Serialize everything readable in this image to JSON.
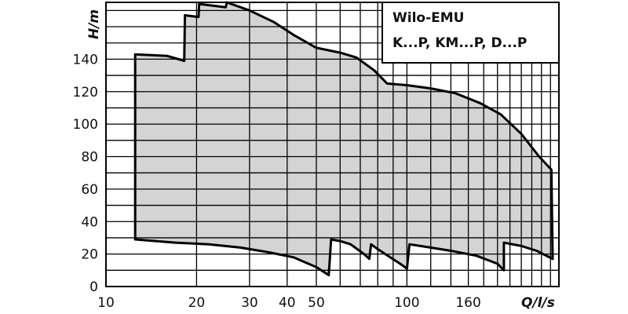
{
  "chart_data": {
    "type": "area",
    "title": "Wilo-EMU",
    "subtitle": "K...P, KM...P, D...P",
    "xlabel": "Q/l/s",
    "ylabel": "H/m",
    "x_scale": "log",
    "xlim": [
      10,
      320
    ],
    "ylim": [
      0,
      175
    ],
    "x_tick_labels": [
      "10",
      "20",
      "30",
      "40",
      "50",
      "100",
      "160"
    ],
    "x_tick_values": [
      10,
      20,
      30,
      40,
      50,
      100,
      160
    ],
    "y_ticks": [
      0,
      20,
      40,
      60,
      80,
      100,
      120,
      140
    ],
    "grid": true,
    "legend_position": "top-right",
    "colors": {
      "fill": "#d4d4d4",
      "line": "#000000",
      "grid": "#000000"
    },
    "envelope": [
      {
        "x": 12.5,
        "y": 143
      },
      {
        "x": 16,
        "y": 142
      },
      {
        "x": 18.2,
        "y": 139
      },
      {
        "x": 18.3,
        "y": 167
      },
      {
        "x": 20.3,
        "y": 166
      },
      {
        "x": 20.4,
        "y": 174
      },
      {
        "x": 25,
        "y": 172
      },
      {
        "x": 25.2,
        "y": 175
      },
      {
        "x": 30,
        "y": 170
      },
      {
        "x": 36,
        "y": 163
      },
      {
        "x": 42,
        "y": 155
      },
      {
        "x": 50,
        "y": 147
      },
      {
        "x": 60,
        "y": 144
      },
      {
        "x": 68,
        "y": 141
      },
      {
        "x": 78,
        "y": 133
      },
      {
        "x": 86,
        "y": 125
      },
      {
        "x": 100,
        "y": 124
      },
      {
        "x": 120,
        "y": 122
      },
      {
        "x": 145,
        "y": 119
      },
      {
        "x": 175,
        "y": 113
      },
      {
        "x": 205,
        "y": 106
      },
      {
        "x": 240,
        "y": 94
      },
      {
        "x": 275,
        "y": 80
      },
      {
        "x": 302,
        "y": 72
      },
      {
        "x": 305,
        "y": 17
      },
      {
        "x": 270,
        "y": 22
      },
      {
        "x": 240,
        "y": 25
      },
      {
        "x": 210,
        "y": 27
      },
      {
        "x": 210,
        "y": 10
      },
      {
        "x": 200,
        "y": 14
      },
      {
        "x": 170,
        "y": 19
      },
      {
        "x": 140,
        "y": 22
      },
      {
        "x": 120,
        "y": 24
      },
      {
        "x": 102,
        "y": 26
      },
      {
        "x": 100,
        "y": 11
      },
      {
        "x": 95,
        "y": 14
      },
      {
        "x": 88,
        "y": 18
      },
      {
        "x": 80,
        "y": 23
      },
      {
        "x": 76,
        "y": 26
      },
      {
        "x": 75,
        "y": 17
      },
      {
        "x": 72,
        "y": 20
      },
      {
        "x": 65,
        "y": 26
      },
      {
        "x": 60,
        "y": 28
      },
      {
        "x": 56,
        "y": 29
      },
      {
        "x": 55,
        "y": 7
      },
      {
        "x": 50,
        "y": 12
      },
      {
        "x": 42,
        "y": 18
      },
      {
        "x": 35,
        "y": 21
      },
      {
        "x": 28,
        "y": 24
      },
      {
        "x": 22,
        "y": 26
      },
      {
        "x": 17,
        "y": 27
      },
      {
        "x": 12.5,
        "y": 29
      }
    ]
  }
}
